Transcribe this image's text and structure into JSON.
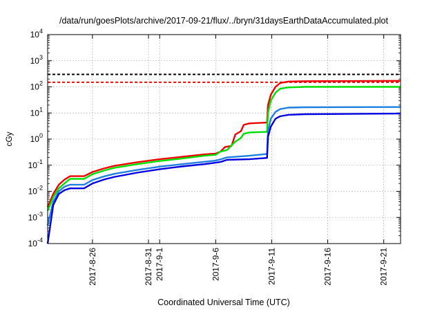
{
  "chart_data": {
    "type": "line",
    "title": "/data/run/goesPlots/archive/2017-09-21/flux/../bryn/31daysEarthDataAccumulated.plot",
    "xlabel": "Coordinated Universal Time (UTC)",
    "ylabel": "cGy",
    "y_scale": "log",
    "ylim": [
      0.0001,
      10000
    ],
    "y_ticks": [
      {
        "value": 0.0001,
        "base": "10",
        "exp": "-4"
      },
      {
        "value": 0.001,
        "base": "10",
        "exp": "-3"
      },
      {
        "value": 0.01,
        "base": "10",
        "exp": "-2"
      },
      {
        "value": 0.1,
        "base": "10",
        "exp": "-1"
      },
      {
        "value": 1,
        "base": "10",
        "exp": "0"
      },
      {
        "value": 10,
        "base": "10",
        "exp": "1"
      },
      {
        "value": 100,
        "base": "10",
        "exp": "2"
      },
      {
        "value": 1000,
        "base": "10",
        "exp": "3"
      },
      {
        "value": 10000,
        "base": "10",
        "exp": "4"
      }
    ],
    "xlim": [
      "2017-08-22",
      "2017-09-22 12:00"
    ],
    "x_ticks": [
      "2017-8-26",
      "2017-8-31",
      "2017-9-1",
      "2017-9-6",
      "2017-9-11",
      "2017-9-16",
      "2017-9-21"
    ],
    "grid": true,
    "legend": "none",
    "reference_lines": [
      {
        "value": 300,
        "color": "#000000",
        "style": "dashed"
      },
      {
        "value": 150,
        "color": "#ff0000",
        "style": "dashed"
      }
    ],
    "series": [
      {
        "color": "#ee0000",
        "points": [
          [
            "2017-08-22 00:00",
            0.0025
          ],
          [
            "2017-08-22 12:00",
            0.008
          ],
          [
            "2017-08-23 00:00",
            0.018
          ],
          [
            "2017-08-23 12:00",
            0.028
          ],
          [
            "2017-08-24 00:00",
            0.038
          ],
          [
            "2017-08-25 06:00",
            0.038
          ],
          [
            "2017-08-26 00:00",
            0.055
          ],
          [
            "2017-08-27 00:00",
            0.075
          ],
          [
            "2017-08-28 00:00",
            0.095
          ],
          [
            "2017-08-30 00:00",
            0.13
          ],
          [
            "2017-09-01 00:00",
            0.17
          ],
          [
            "2017-09-03 00:00",
            0.21
          ],
          [
            "2017-09-05 00:00",
            0.26
          ],
          [
            "2017-09-06 00:00",
            0.28
          ],
          [
            "2017-09-06 10:00",
            0.33
          ],
          [
            "2017-09-06 20:00",
            0.5
          ],
          [
            "2017-09-07 10:00",
            0.55
          ],
          [
            "2017-09-07 18:00",
            1.5
          ],
          [
            "2017-09-08 06:00",
            2.0
          ],
          [
            "2017-09-08 12:00",
            3.5
          ],
          [
            "2017-09-09 00:00",
            4.0
          ],
          [
            "2017-09-10 14:00",
            4.3
          ],
          [
            "2017-09-10 16:00",
            20
          ],
          [
            "2017-09-10 22:00",
            50
          ],
          [
            "2017-09-11 08:00",
            100
          ],
          [
            "2017-09-11 18:00",
            140
          ],
          [
            "2017-09-12 12:00",
            160
          ],
          [
            "2017-09-14 00:00",
            165
          ],
          [
            "2017-09-22 12:00",
            170
          ]
        ]
      },
      {
        "color": "#00e000",
        "points": [
          [
            "2017-08-22 00:00",
            0.0018
          ],
          [
            "2017-08-22 12:00",
            0.006
          ],
          [
            "2017-08-23 00:00",
            0.013
          ],
          [
            "2017-08-23 12:00",
            0.02
          ],
          [
            "2017-08-24 00:00",
            0.03
          ],
          [
            "2017-08-25 06:00",
            0.03
          ],
          [
            "2017-08-26 00:00",
            0.045
          ],
          [
            "2017-08-27 00:00",
            0.062
          ],
          [
            "2017-08-28 00:00",
            0.08
          ],
          [
            "2017-08-30 00:00",
            0.11
          ],
          [
            "2017-09-01 00:00",
            0.145
          ],
          [
            "2017-09-03 00:00",
            0.18
          ],
          [
            "2017-09-05 00:00",
            0.23
          ],
          [
            "2017-09-06 00:00",
            0.25
          ],
          [
            "2017-09-06 10:00",
            0.33
          ],
          [
            "2017-09-07 00:00",
            0.38
          ],
          [
            "2017-09-07 18:00",
            0.8
          ],
          [
            "2017-09-08 06:00",
            1.1
          ],
          [
            "2017-09-08 12:00",
            1.6
          ],
          [
            "2017-09-09 00:00",
            1.8
          ],
          [
            "2017-09-10 14:00",
            1.9
          ],
          [
            "2017-09-10 16:00",
            10
          ],
          [
            "2017-09-10 22:00",
            30
          ],
          [
            "2017-09-11 08:00",
            60
          ],
          [
            "2017-09-11 18:00",
            85
          ],
          [
            "2017-09-12 12:00",
            95
          ],
          [
            "2017-09-14 00:00",
            100
          ],
          [
            "2017-09-22 12:00",
            100
          ]
        ]
      },
      {
        "color": "#1e7fe0",
        "points": [
          [
            "2017-08-22 00:00",
            0.0005
          ],
          [
            "2017-08-22 12:00",
            0.004
          ],
          [
            "2017-08-23 00:00",
            0.01
          ],
          [
            "2017-08-23 12:00",
            0.015
          ],
          [
            "2017-08-24 00:00",
            0.018
          ],
          [
            "2017-08-25 06:00",
            0.018
          ],
          [
            "2017-08-26 00:00",
            0.027
          ],
          [
            "2017-08-27 00:00",
            0.037
          ],
          [
            "2017-08-28 00:00",
            0.047
          ],
          [
            "2017-08-30 00:00",
            0.066
          ],
          [
            "2017-09-01 00:00",
            0.088
          ],
          [
            "2017-09-03 00:00",
            0.11
          ],
          [
            "2017-09-05 00:00",
            0.135
          ],
          [
            "2017-09-06 00:00",
            0.15
          ],
          [
            "2017-09-06 12:00",
            0.17
          ],
          [
            "2017-09-07 00:00",
            0.2
          ],
          [
            "2017-09-09 00:00",
            0.23
          ],
          [
            "2017-09-10 14:00",
            0.27
          ],
          [
            "2017-09-10 16:00",
            2
          ],
          [
            "2017-09-10 22:00",
            6
          ],
          [
            "2017-09-11 08:00",
            11
          ],
          [
            "2017-09-11 18:00",
            14
          ],
          [
            "2017-09-12 12:00",
            16
          ],
          [
            "2017-09-14 00:00",
            16.5
          ],
          [
            "2017-09-22 12:00",
            16.8
          ]
        ]
      },
      {
        "color": "#0000e0",
        "points": [
          [
            "2017-08-22 00:00",
            0.0001
          ],
          [
            "2017-08-22 12:00",
            0.003
          ],
          [
            "2017-08-23 00:00",
            0.008
          ],
          [
            "2017-08-23 12:00",
            0.011
          ],
          [
            "2017-08-24 00:00",
            0.013
          ],
          [
            "2017-08-25 06:00",
            0.013
          ],
          [
            "2017-08-26 00:00",
            0.02
          ],
          [
            "2017-08-27 00:00",
            0.028
          ],
          [
            "2017-08-28 00:00",
            0.036
          ],
          [
            "2017-08-30 00:00",
            0.052
          ],
          [
            "2017-09-01 00:00",
            0.07
          ],
          [
            "2017-09-03 00:00",
            0.09
          ],
          [
            "2017-09-05 00:00",
            0.11
          ],
          [
            "2017-09-06 00:00",
            0.125
          ],
          [
            "2017-09-06 12:00",
            0.135
          ],
          [
            "2017-09-07 00:00",
            0.16
          ],
          [
            "2017-09-09 00:00",
            0.17
          ],
          [
            "2017-09-10 14:00",
            0.19
          ],
          [
            "2017-09-10 16:00",
            1.2
          ],
          [
            "2017-09-10 22:00",
            3
          ],
          [
            "2017-09-11 08:00",
            6
          ],
          [
            "2017-09-11 18:00",
            7.5
          ],
          [
            "2017-09-12 12:00",
            8.5
          ],
          [
            "2017-09-14 00:00",
            9
          ],
          [
            "2017-09-22 12:00",
            9.5
          ]
        ]
      }
    ]
  }
}
